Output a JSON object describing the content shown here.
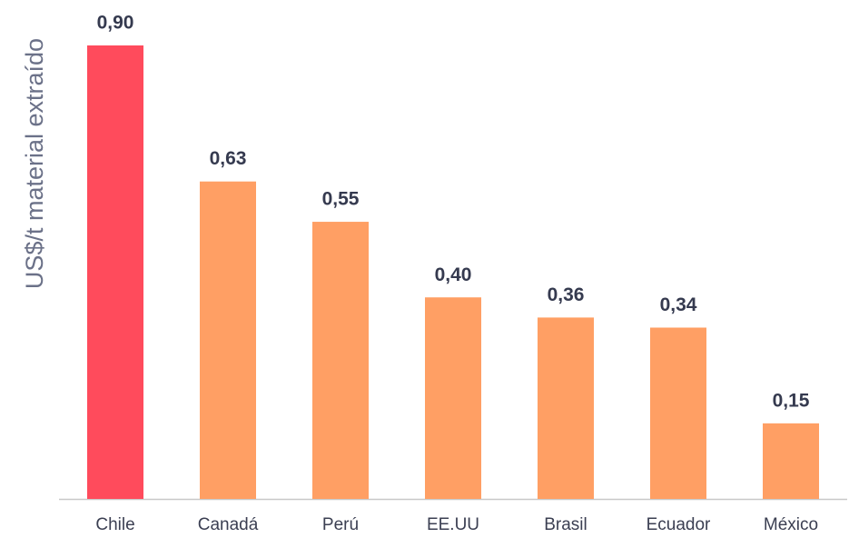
{
  "chart_data": {
    "type": "bar",
    "ylabel": "US$/t material extraído",
    "categories": [
      "Chile",
      "Canadá",
      "Perú",
      "EE.UU",
      "Brasil",
      "Ecuador",
      "México"
    ],
    "values": [
      0.9,
      0.63,
      0.55,
      0.4,
      0.36,
      0.34,
      0.15
    ],
    "value_labels": [
      "0,90",
      "0,63",
      "0,55",
      "0,40",
      "0,36",
      "0,34",
      "0,15"
    ],
    "colors": [
      "#ff4b5c",
      "#ff9f64",
      "#ff9f64",
      "#ff9f64",
      "#ff9f64",
      "#ff9f64",
      "#ff9f64"
    ],
    "ylim": [
      0,
      0.9
    ]
  }
}
